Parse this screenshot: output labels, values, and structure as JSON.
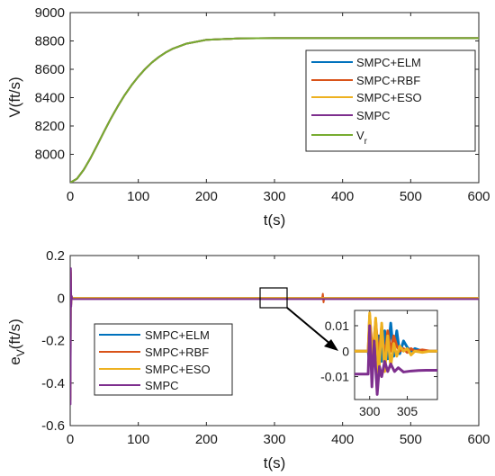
{
  "colors": {
    "SMPC+ELM": "#0072bd",
    "SMPC+RBF": "#d95319",
    "SMPC+ESO": "#edb120",
    "SMPC": "#7e2f8e",
    "Vr": "#77ac30"
  },
  "chart_data": [
    {
      "type": "line",
      "xlabel": "t(s)",
      "ylabel": "V(ft/s)",
      "xlim": [
        0,
        600
      ],
      "ylim": [
        7800,
        9000
      ],
      "xticks": [
        "0",
        "100",
        "200",
        "300",
        "400",
        "500",
        "600"
      ],
      "yticks": [
        "8000",
        "8200",
        "8400",
        "8600",
        "8800",
        "9000"
      ],
      "legend": {
        "position": "center-right",
        "entries": [
          "SMPC+ELM",
          "SMPC+RBF",
          "SMPC+ESO",
          "SMPC",
          "V_r"
        ]
      },
      "series": [
        {
          "name": "SMPC+ELM",
          "x": [
            0,
            10,
            20,
            30,
            40,
            50,
            60,
            70,
            80,
            90,
            100,
            110,
            120,
            130,
            140,
            150,
            170,
            200,
            250,
            300,
            400,
            500,
            600
          ],
          "y": [
            7800,
            7828,
            7892,
            7975,
            8068,
            8163,
            8255,
            8340,
            8418,
            8487,
            8548,
            8602,
            8648,
            8686,
            8718,
            8744,
            8780,
            8808,
            8818,
            8820,
            8820,
            8820,
            8820
          ]
        },
        {
          "name": "SMPC+RBF",
          "x": [
            0,
            10,
            20,
            30,
            40,
            50,
            60,
            70,
            80,
            90,
            100,
            110,
            120,
            130,
            140,
            150,
            170,
            200,
            250,
            300,
            400,
            500,
            600
          ],
          "y": [
            7800,
            7828,
            7892,
            7975,
            8068,
            8163,
            8255,
            8340,
            8418,
            8487,
            8548,
            8602,
            8648,
            8686,
            8718,
            8744,
            8780,
            8808,
            8818,
            8820,
            8820,
            8820,
            8820
          ]
        },
        {
          "name": "SMPC+ESO",
          "x": [
            0,
            10,
            20,
            30,
            40,
            50,
            60,
            70,
            80,
            90,
            100,
            110,
            120,
            130,
            140,
            150,
            170,
            200,
            250,
            300,
            400,
            500,
            600
          ],
          "y": [
            7800,
            7828,
            7892,
            7975,
            8068,
            8163,
            8255,
            8340,
            8418,
            8487,
            8548,
            8602,
            8648,
            8686,
            8718,
            8744,
            8780,
            8808,
            8818,
            8820,
            8820,
            8820,
            8820
          ]
        },
        {
          "name": "SMPC",
          "x": [
            0,
            10,
            20,
            30,
            40,
            50,
            60,
            70,
            80,
            90,
            100,
            110,
            120,
            130,
            140,
            150,
            170,
            200,
            250,
            300,
            400,
            500,
            600
          ],
          "y": [
            7800,
            7828,
            7892,
            7975,
            8068,
            8163,
            8255,
            8340,
            8418,
            8487,
            8548,
            8602,
            8648,
            8686,
            8718,
            8744,
            8780,
            8808,
            8818,
            8820,
            8820,
            8820,
            8820
          ]
        },
        {
          "name": "V_r",
          "x": [
            0,
            10,
            20,
            30,
            40,
            50,
            60,
            70,
            80,
            90,
            100,
            110,
            120,
            130,
            140,
            150,
            170,
            200,
            250,
            300,
            400,
            500,
            600
          ],
          "y": [
            7800,
            7828,
            7892,
            7975,
            8068,
            8163,
            8255,
            8340,
            8418,
            8487,
            8548,
            8602,
            8648,
            8686,
            8718,
            8744,
            8780,
            8808,
            8818,
            8820,
            8820,
            8820,
            8820
          ]
        }
      ]
    },
    {
      "type": "line",
      "xlabel": "t(s)",
      "ylabel": "e_V(ft/s)",
      "xlim": [
        0,
        600
      ],
      "ylim": [
        -0.6,
        0.2
      ],
      "xticks": [
        "0",
        "100",
        "200",
        "300",
        "400",
        "500",
        "600"
      ],
      "yticks": [
        "-0.6",
        "-0.4",
        "-0.2",
        "0",
        "0.2"
      ],
      "legend": {
        "position": "bottom-left",
        "entries": [
          "SMPC+ELM",
          "SMPC+RBF",
          "SMPC+ESO",
          "SMPC"
        ]
      },
      "series": [
        {
          "name": "SMPC+ELM",
          "x": [
            0,
            0.5,
            1,
            1.5,
            2,
            3,
            5,
            10,
            300,
            600
          ],
          "y": [
            0,
            -0.47,
            0.1,
            -0.02,
            0.01,
            0,
            0,
            0,
            0,
            0
          ]
        },
        {
          "name": "SMPC+RBF",
          "x": [
            0,
            0.5,
            1,
            1.5,
            2,
            3,
            5,
            10,
            370,
            371,
            372,
            373,
            600
          ],
          "y": [
            0,
            -0.46,
            0.12,
            -0.03,
            0.01,
            0,
            0,
            0,
            0,
            0.02,
            -0.02,
            0,
            0
          ]
        },
        {
          "name": "SMPC+ESO",
          "x": [
            0,
            0.5,
            1,
            1.5,
            2,
            3,
            5,
            10,
            300,
            600
          ],
          "y": [
            0,
            -0.48,
            0.13,
            -0.03,
            0.01,
            0,
            0,
            0,
            0,
            0
          ]
        },
        {
          "name": "SMPC",
          "x": [
            0,
            0.5,
            1,
            1.5,
            2,
            3,
            5,
            10,
            300,
            600
          ],
          "y": [
            0,
            -0.5,
            0.14,
            -0.04,
            0.01,
            -0.005,
            -0.005,
            -0.005,
            -0.005,
            -0.005
          ]
        }
      ]
    },
    {
      "type": "line",
      "role": "inset zoom of lower chart around t=300",
      "xlim": [
        298,
        309
      ],
      "ylim": [
        -0.019,
        0.016
      ],
      "xticks": [
        "300",
        "305"
      ],
      "yticks": [
        "0.01",
        "0",
        "-0.01"
      ],
      "series": [
        {
          "name": "SMPC+ELM",
          "x": [
            298,
            299.8,
            300,
            300.4,
            300.8,
            301.2,
            301.6,
            302,
            302.4,
            302.8,
            303.2,
            303.6,
            304,
            304.5,
            305,
            305.5,
            306,
            307,
            308,
            309
          ],
          "y": [
            0,
            0,
            -0.005,
            0.004,
            -0.003,
            0.006,
            -0.004,
            0.008,
            -0.003,
            0.011,
            -0.002,
            0.008,
            -0.001,
            0.004,
            0.0015,
            0,
            0.001,
            0,
            0,
            0
          ]
        },
        {
          "name": "SMPC+RBF",
          "x": [
            298,
            299.8,
            300,
            300.4,
            300.8,
            301.2,
            301.6,
            302,
            302.4,
            302.8,
            303.2,
            303.6,
            304,
            304.5,
            305,
            305.5,
            306,
            307,
            308,
            309
          ],
          "y": [
            0,
            0,
            0.014,
            -0.002,
            0.012,
            -0.003,
            0.01,
            -0.004,
            0.008,
            0.0,
            0.006,
            0.002,
            0.0,
            0.001,
            -0.0005,
            0.001,
            0.0,
            0.0005,
            0,
            0
          ]
        },
        {
          "name": "SMPC+ESO",
          "x": [
            298,
            299.8,
            300,
            300.4,
            300.8,
            301.2,
            301.6,
            302,
            302.4,
            302.8,
            303.2,
            303.6,
            304,
            304.5,
            305,
            305.5,
            306,
            307,
            308,
            309
          ],
          "y": [
            0,
            0,
            0.015,
            -0.006,
            0.013,
            -0.01,
            0.011,
            -0.008,
            0.006,
            -0.006,
            0.003,
            -0.002,
            0.002,
            0.0,
            0.001,
            -0.0015,
            0.0,
            -0.0005,
            0,
            0
          ]
        },
        {
          "name": "SMPC",
          "x": [
            298,
            299.8,
            300,
            300.3,
            300.6,
            301,
            301.3,
            301.6,
            302,
            302.4,
            302.8,
            303.3,
            303.8,
            304.5,
            305.5,
            306.5,
            307.5,
            309
          ],
          "y": [
            -0.009,
            -0.009,
            0.01,
            -0.014,
            0.004,
            -0.017,
            -0.006,
            -0.01,
            -0.004,
            -0.008,
            -0.005,
            -0.008,
            -0.0065,
            -0.0082,
            -0.0078,
            -0.0076,
            -0.0075,
            -0.0075
          ]
        }
      ]
    }
  ]
}
